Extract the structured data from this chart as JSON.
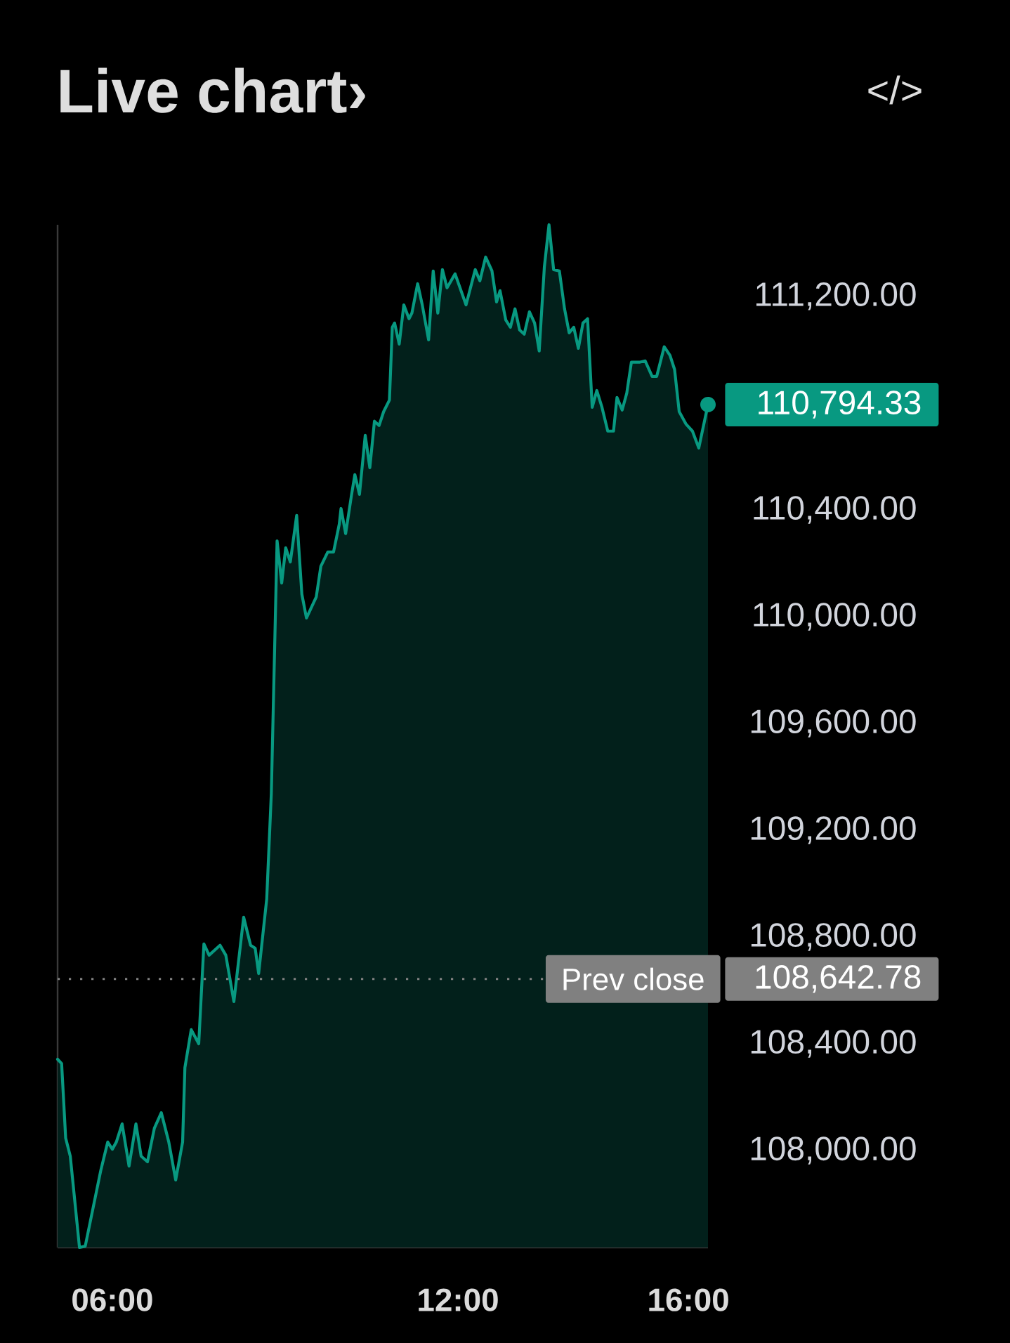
{
  "chart_data": {
    "type": "area",
    "title": "Live chart›",
    "annotations": [
      "</>",
      {
        "text": "110,794.33",
        "x": 16.34,
        "y": 110794.33
      },
      "108,642.78"
    ],
    "x": [
      5.05,
      5.12,
      5.19,
      5.27,
      5.43,
      5.53,
      5.8,
      5.92,
      6.0,
      6.07,
      6.17,
      6.29,
      6.41,
      6.5,
      6.61,
      6.73,
      6.85,
      6.98,
      7.1,
      7.22,
      7.26,
      7.37,
      7.5,
      7.59,
      7.68,
      7.87,
      7.97,
      8.11,
      8.28,
      8.4,
      8.48,
      8.54,
      8.68,
      8.76,
      8.86,
      8.94,
      9.01,
      9.09,
      9.2,
      9.29,
      9.37,
      9.54,
      9.62,
      9.74,
      9.84,
      9.94,
      9.97,
      10.05,
      10.15,
      10.21,
      10.29,
      10.39,
      10.47,
      10.55,
      10.63,
      10.71,
      10.81,
      10.86,
      10.9,
      10.98,
      11.06,
      11.15,
      11.2,
      11.3,
      11.38,
      11.49,
      11.57,
      11.65,
      11.73,
      11.81,
      11.95,
      12.14,
      12.3,
      12.38,
      12.48,
      12.59,
      12.67,
      12.73,
      12.83,
      12.91,
      12.99,
      13.07,
      13.15,
      13.24,
      13.33,
      13.41,
      13.5,
      13.58,
      13.66,
      13.76,
      13.85,
      13.93,
      14.01,
      14.09,
      14.17,
      14.25,
      14.33,
      14.41,
      14.5,
      14.6,
      14.7,
      14.76,
      14.85,
      14.93,
      15.01,
      15.15,
      15.25,
      15.37,
      15.45,
      15.58,
      15.68,
      15.76,
      15.84,
      15.96,
      16.07,
      16.18,
      16.34
    ],
    "series": [
      {
        "color": "#089981",
        "values": [
          108342,
          108326,
          108047,
          107979,
          107637,
          107642,
          107926,
          108032,
          108005,
          108032,
          108100,
          107942,
          108100,
          107979,
          107958,
          108084,
          108142,
          108032,
          107890,
          108032,
          108311,
          108453,
          108400,
          108774,
          108732,
          108769,
          108732,
          108558,
          108874,
          108769,
          108758,
          108663,
          108942,
          109337,
          110284,
          110126,
          110258,
          110205,
          110379,
          110084,
          109995,
          110074,
          110189,
          110242,
          110242,
          110347,
          110405,
          110311,
          110453,
          110532,
          110458,
          110679,
          110558,
          110732,
          110716,
          110768,
          110811,
          111084,
          111100,
          111021,
          111168,
          111116,
          111137,
          111247,
          111168,
          111037,
          111295,
          111137,
          111300,
          111232,
          111284,
          111168,
          111300,
          111258,
          111347,
          111295,
          111179,
          111221,
          111111,
          111084,
          111153,
          111074,
          111058,
          111142,
          111100,
          110995,
          111311,
          111468,
          111300,
          111295,
          111153,
          111063,
          111084,
          111005,
          111100,
          111116,
          110784,
          110847,
          110784,
          110695,
          110695,
          110821,
          110774,
          110837,
          110953,
          110953,
          110958,
          110900,
          110900,
          111011,
          110979,
          110926,
          110768,
          110721,
          110695,
          110632,
          110794.33
        ]
      }
    ],
    "xlim": [
      5.05,
      16.34
    ],
    "ylim": [
      107637,
      111468
    ],
    "xticks": [
      {
        "value": 6,
        "label": "06:00"
      },
      {
        "value": 12,
        "label": "12:00"
      },
      {
        "value": 16,
        "label": "16:00"
      }
    ],
    "yticks": [
      {
        "value": 108000,
        "label": "108,000.00"
      },
      {
        "value": 108400,
        "label": "108,400.00"
      },
      {
        "value": 108800,
        "label": "108,800.00"
      },
      {
        "value": 109200,
        "label": "109,200.00"
      },
      {
        "value": 109600,
        "label": "109,600.00"
      },
      {
        "value": 110000,
        "label": "110,000.00"
      },
      {
        "value": 110400,
        "label": "110,400.00"
      },
      {
        "value": 111200,
        "label": "111,200.00"
      }
    ],
    "ref_lines": [
      {
        "axis": "y",
        "value": 108642.78,
        "label": "Prev close",
        "color": "#808080",
        "line_style": "dotted"
      }
    ]
  }
}
